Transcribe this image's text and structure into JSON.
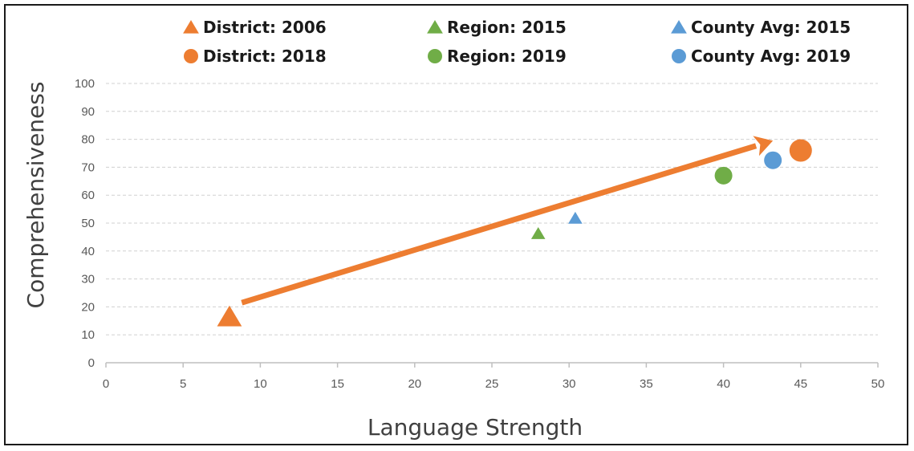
{
  "chart_data": {
    "type": "scatter",
    "xlabel": "Language Strength",
    "ylabel": "Comprehensiveness",
    "xlim": [
      0,
      50
    ],
    "ylim": [
      0,
      100
    ],
    "xticks": [
      0,
      5,
      10,
      15,
      20,
      25,
      30,
      35,
      40,
      45,
      50
    ],
    "yticks": [
      0,
      10,
      20,
      30,
      40,
      50,
      60,
      70,
      80,
      90,
      100
    ],
    "grid": "horizontal-dashed",
    "legend_position": "top",
    "series": [
      {
        "name": "District: 2006",
        "marker": "triangle",
        "size": "large",
        "color": "#ED7D31",
        "x": 8,
        "y": 16
      },
      {
        "name": "District: 2018",
        "marker": "circle",
        "size": "large",
        "color": "#ED7D31",
        "x": 45,
        "y": 76
      },
      {
        "name": "Region: 2015",
        "marker": "triangle",
        "size": "small",
        "color": "#70AD47",
        "x": 28,
        "y": 46
      },
      {
        "name": "Region: 2019",
        "marker": "circle",
        "size": "medium",
        "color": "#70AD47",
        "x": 40,
        "y": 67
      },
      {
        "name": "County Avg: 2015",
        "marker": "triangle",
        "size": "small",
        "color": "#5B9BD5",
        "x": 30.4,
        "y": 51.5
      },
      {
        "name": "County Avg: 2019",
        "marker": "circle",
        "size": "medium",
        "color": "#5B9BD5",
        "x": 43.2,
        "y": 72.5
      }
    ],
    "annotations": [
      {
        "type": "arrow",
        "color": "#ED7D31",
        "from": [
          8.8,
          21.5
        ],
        "to": [
          43.2,
          79.5
        ]
      }
    ]
  }
}
